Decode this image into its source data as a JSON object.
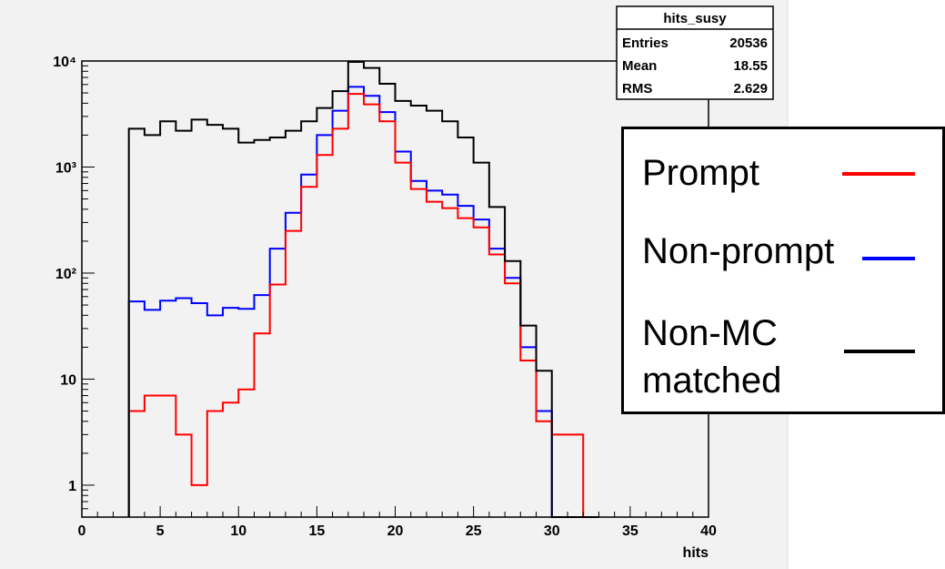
{
  "colors": {
    "pad_background": "#f2f2f2",
    "frame": "#000000",
    "prompt": "#ff0000",
    "non_prompt": "#0000ff",
    "non_mc": "#000000"
  },
  "stats_box": {
    "title": "hits_susy",
    "rows": [
      {
        "label": "Entries",
        "value": "20536"
      },
      {
        "label": "Mean",
        "value": "18.55"
      },
      {
        "label": "RMS",
        "value": "2.629"
      }
    ]
  },
  "legend": {
    "entries": [
      {
        "label": "Prompt",
        "color": "#ff0000"
      },
      {
        "label": "Non-prompt",
        "color": "#0000ff"
      },
      {
        "label_lines": [
          "Non-MC",
          "matched"
        ],
        "color": "#000000"
      }
    ]
  },
  "chart_data": {
    "type": "line",
    "style": "step-histogram",
    "xlabel": "hits",
    "ylabel": "",
    "xlim": [
      0,
      40
    ],
    "ylim": [
      0.5,
      10000
    ],
    "yscale": "log",
    "x_ticks": [
      0,
      5,
      10,
      15,
      20,
      25,
      30,
      35,
      40
    ],
    "y_ticks": [
      {
        "value": 1,
        "label": "1"
      },
      {
        "value": 10,
        "label": "10"
      },
      {
        "value": 100,
        "label": "10²"
      },
      {
        "value": 1000,
        "label": "10³"
      },
      {
        "value": 10000,
        "label": "10⁴"
      }
    ],
    "bins": [
      3,
      4,
      5,
      6,
      7,
      8,
      9,
      10,
      11,
      12,
      13,
      14,
      15,
      16,
      17,
      18,
      19,
      20,
      21,
      22,
      23,
      24,
      25,
      26,
      27,
      28,
      29,
      30,
      31,
      32
    ],
    "series": [
      {
        "color": "#ff0000",
        "values": [
          5,
          7,
          7,
          3,
          1,
          5,
          6,
          8,
          27,
          78,
          250,
          650,
          1300,
          2300,
          4900,
          3900,
          2700,
          1100,
          620,
          470,
          410,
          330,
          270,
          150,
          80,
          15,
          4,
          3,
          3,
          0
        ]
      },
      {
        "color": "#0000ff",
        "values": [
          54,
          45,
          55,
          58,
          52,
          40,
          47,
          46,
          62,
          170,
          370,
          850,
          2000,
          3400,
          5700,
          4700,
          3300,
          1400,
          740,
          600,
          550,
          430,
          320,
          170,
          90,
          20,
          5,
          0,
          0,
          0
        ]
      },
      {
        "color": "#000000",
        "values": [
          2300,
          2000,
          2700,
          2200,
          2800,
          2500,
          2300,
          1700,
          1800,
          1900,
          2200,
          2700,
          3600,
          5200,
          9800,
          8600,
          6100,
          4200,
          3800,
          3400,
          2700,
          1900,
          1100,
          420,
          130,
          32,
          12,
          0,
          0,
          0
        ]
      }
    ]
  }
}
